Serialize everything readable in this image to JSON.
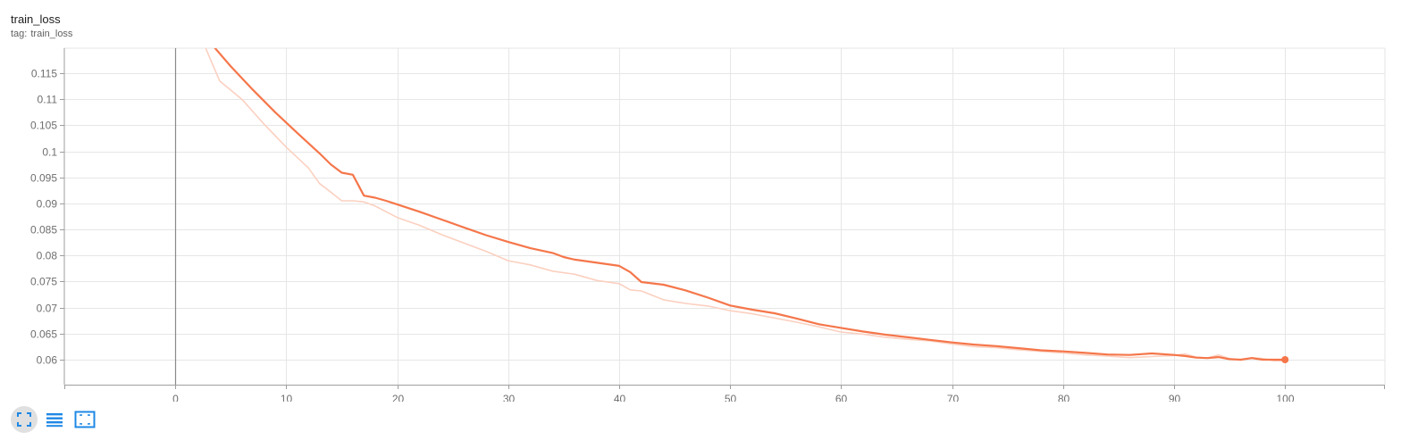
{
  "card": {
    "title": "train_loss",
    "tag_prefix": "tag:",
    "tag": "train_loss"
  },
  "colors": {
    "line": "#f5764a",
    "raw_line": "#fbd0c0",
    "grid": "#e6e6e6",
    "axis": "#9e9e9e",
    "zero_line": "#8a8a8a",
    "toolbar_icon": "#1e88e5"
  },
  "toolbar": {
    "icons": [
      "fullscreen-icon",
      "toggle-log-scale-icon",
      "fit-domain-icon"
    ]
  },
  "chart_data": {
    "type": "line",
    "title": "train_loss",
    "xlabel": "",
    "ylabel": "",
    "xlim": [
      -10,
      109
    ],
    "ylim": [
      0.0552,
      0.1198
    ],
    "xticks": [
      0,
      10,
      20,
      30,
      40,
      50,
      60,
      70,
      80,
      90,
      100
    ],
    "yticks": [
      0.06,
      0.065,
      0.07,
      0.075,
      0.08,
      0.085,
      0.09,
      0.095,
      0.1,
      0.105,
      0.11,
      0.115
    ],
    "ytick_labels": [
      "0.06",
      "0.065",
      "0.07",
      "0.075",
      "0.08",
      "0.085",
      "0.09",
      "0.095",
      "0.1",
      "0.105",
      "0.11",
      "0.115"
    ],
    "grid": true,
    "legend": "none",
    "series": [
      {
        "role": "smoothed",
        "x": [
          3.5,
          5,
          7,
          9,
          11,
          13,
          14,
          15,
          16,
          17,
          18,
          19,
          20,
          22,
          24,
          26,
          28,
          30,
          32,
          34,
          35,
          36,
          38,
          40,
          41,
          42,
          44,
          46,
          48,
          50,
          52,
          54,
          56,
          58,
          60,
          62,
          64,
          66,
          68,
          70,
          72,
          74,
          76,
          78,
          80,
          82,
          84,
          86,
          88,
          90,
          91,
          92,
          93,
          94,
          95,
          96,
          97,
          98,
          99,
          100
        ],
        "y": [
          0.12,
          0.1163,
          0.1118,
          0.1075,
          0.1035,
          0.0996,
          0.0975,
          0.0959,
          0.0955,
          0.0915,
          0.0911,
          0.0905,
          0.0898,
          0.0884,
          0.0869,
          0.0854,
          0.0839,
          0.0826,
          0.0814,
          0.0805,
          0.0797,
          0.0792,
          0.0786,
          0.078,
          0.0768,
          0.0749,
          0.0744,
          0.0733,
          0.0719,
          0.0704,
          0.0696,
          0.0689,
          0.0679,
          0.0668,
          0.0661,
          0.0654,
          0.0648,
          0.0643,
          0.0638,
          0.0633,
          0.0629,
          0.0626,
          0.0622,
          0.0618,
          0.0616,
          0.0613,
          0.061,
          0.0609,
          0.0612,
          0.0609,
          0.0607,
          0.0604,
          0.0603,
          0.0605,
          0.0601,
          0.06,
          0.0603,
          0.06,
          0.06,
          0.06
        ]
      },
      {
        "role": "raw",
        "x": [
          2.7,
          4,
          6,
          8,
          10,
          12,
          13,
          14,
          15,
          16,
          17,
          18,
          20,
          22,
          24,
          26,
          28,
          30,
          32,
          34,
          36,
          38,
          40,
          41,
          42,
          44,
          46,
          48,
          50,
          52,
          54,
          56,
          58,
          60,
          62,
          64,
          66,
          68,
          70,
          72,
          74,
          76,
          78,
          80,
          82,
          84,
          86,
          88,
          90,
          91,
          92,
          93,
          94,
          95,
          96,
          97,
          98,
          99,
          100
        ],
        "y": [
          0.12,
          0.1135,
          0.11,
          0.1052,
          0.1008,
          0.0968,
          0.0938,
          0.0922,
          0.0905,
          0.0905,
          0.0903,
          0.0895,
          0.0873,
          0.0858,
          0.084,
          0.0824,
          0.0808,
          0.079,
          0.0782,
          0.077,
          0.0764,
          0.0752,
          0.0746,
          0.0734,
          0.0732,
          0.0715,
          0.0708,
          0.0703,
          0.0694,
          0.0688,
          0.068,
          0.0672,
          0.0663,
          0.0653,
          0.0649,
          0.0643,
          0.0639,
          0.0636,
          0.063,
          0.0625,
          0.0623,
          0.0619,
          0.0616,
          0.0613,
          0.0609,
          0.0607,
          0.0604,
          0.0606,
          0.0608,
          0.0611,
          0.0605,
          0.0603,
          0.0609,
          0.0602,
          0.0599,
          0.0604,
          0.0602,
          0.0598,
          0.0598
        ]
      }
    ],
    "last_point": {
      "x": 100,
      "y": 0.06
    }
  }
}
